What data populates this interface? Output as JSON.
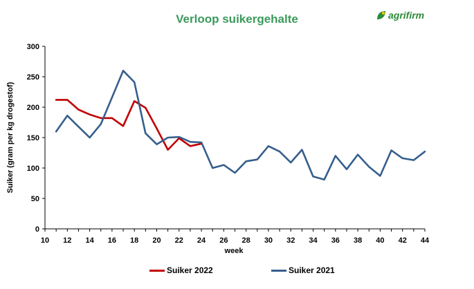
{
  "header": {
    "title": "Verloop suikergehalte",
    "logo_text": "agrifirm",
    "title_color": "#3a9a5b",
    "logo_color": "#2e8b3a",
    "logo_accent": "#f2c200"
  },
  "chart_data": {
    "type": "line",
    "title": "Verloop suikergehalte",
    "xlabel": "week",
    "ylabel": "Suiker (gram per kg drogestof)",
    "xlim": [
      10,
      44
    ],
    "ylim": [
      0,
      300
    ],
    "xticks": [
      10,
      12,
      14,
      16,
      18,
      20,
      22,
      24,
      26,
      28,
      30,
      32,
      34,
      36,
      38,
      40,
      42,
      44
    ],
    "yticks": [
      0,
      50,
      100,
      150,
      200,
      250,
      300
    ],
    "grid": false,
    "legend_position": "bottom",
    "series": [
      {
        "name": "Suiker 2022",
        "color": "#c00000",
        "x": [
          11,
          12,
          13,
          14,
          15,
          16,
          17,
          18,
          19,
          20,
          21,
          22,
          23,
          24
        ],
        "y": [
          212,
          212,
          196,
          188,
          182,
          182,
          169,
          210,
          199,
          165,
          130,
          149,
          136,
          140
        ]
      },
      {
        "name": "Suiker 2021",
        "color": "#355e8c",
        "x": [
          11,
          12,
          13,
          14,
          15,
          16,
          17,
          18,
          19,
          20,
          21,
          22,
          23,
          24,
          25,
          26,
          27,
          28,
          29,
          30,
          31,
          32,
          33,
          34,
          35,
          36,
          37,
          38,
          39,
          40,
          41,
          42,
          43,
          44
        ],
        "y": [
          160,
          186,
          168,
          150,
          172,
          216,
          260,
          241,
          157,
          139,
          150,
          151,
          143,
          142,
          100,
          105,
          92,
          111,
          114,
          136,
          127,
          109,
          130,
          86,
          81,
          120,
          98,
          122,
          102,
          87,
          129,
          116,
          113,
          127
        ]
      }
    ]
  }
}
